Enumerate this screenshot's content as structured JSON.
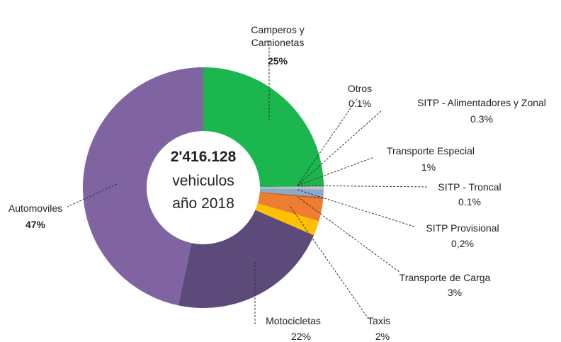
{
  "chart_data": {
    "type": "donut",
    "center_title": "2'416.128",
    "center_lines": [
      "vehiculos",
      "año 2018"
    ],
    "categories": [
      "Camperos y Camionetas",
      "Otros",
      "SITP - Alimentadores y Zonal",
      "Transporte Especial",
      "SITP - Troncal",
      "SITP Provisional",
      "Transporte de Carga",
      "Taxis",
      "Motocicletas",
      "Automoviles"
    ],
    "values": [
      25,
      0.1,
      0.3,
      1,
      0.1,
      0.2,
      3,
      2,
      22,
      47
    ],
    "value_labels": [
      "25%",
      "0.1%",
      "0.3%",
      "1%",
      "0.1%",
      "0,2%",
      "3%",
      "2%",
      "22%",
      "47%"
    ],
    "colors": [
      "#1cb64e",
      "#a6a6a6",
      "#bfbfbf",
      "#8ea9c8",
      "#7f7f7f",
      "#c55a11",
      "#ed7d31",
      "#ffc000",
      "#5b4a7a",
      "#8064a2"
    ]
  }
}
